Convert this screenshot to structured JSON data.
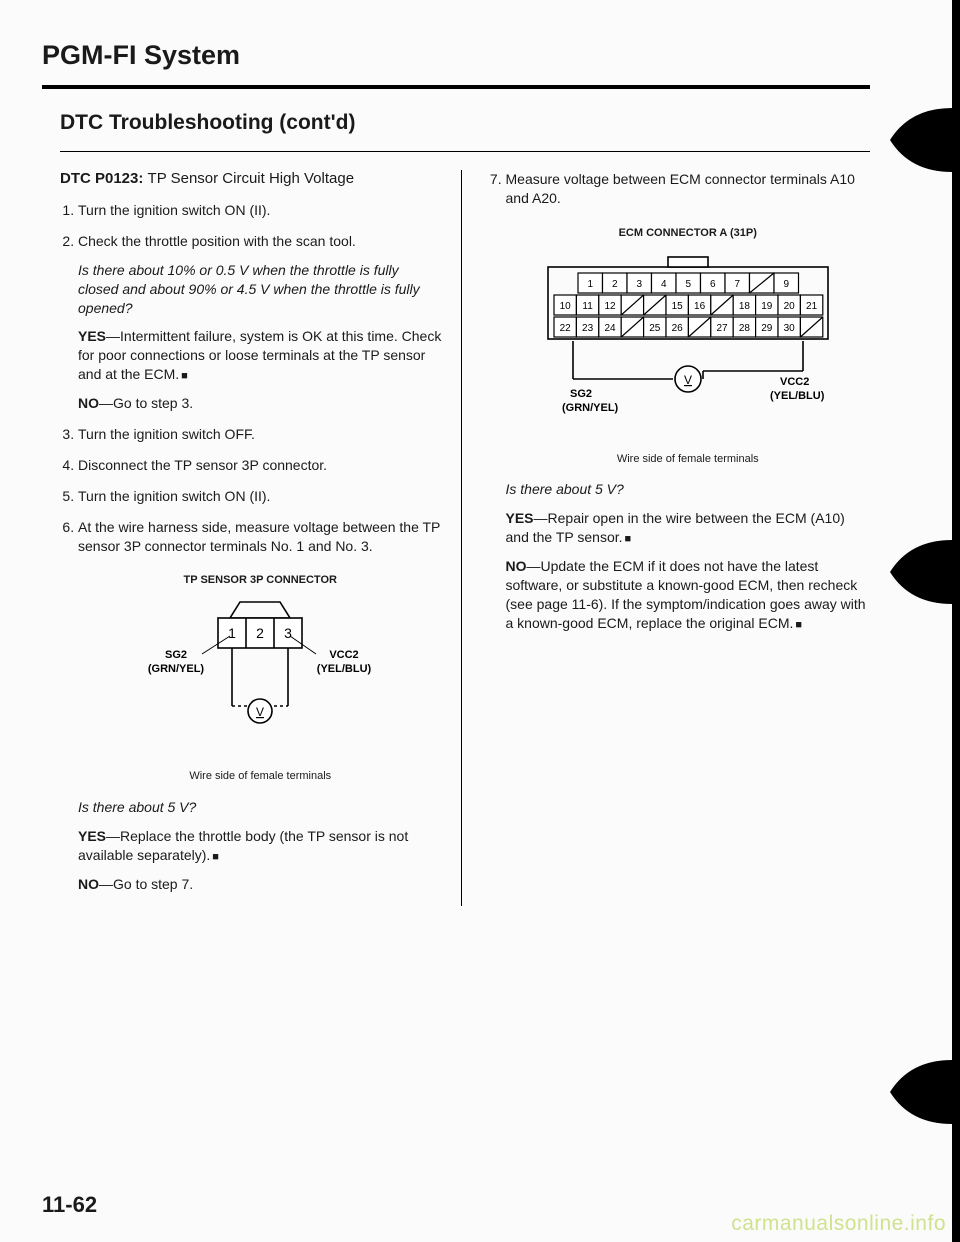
{
  "page_title": "PGM-FI System",
  "section_title": "DTC Troubleshooting (cont'd)",
  "dtc_code": "DTC P0123:",
  "dtc_desc": "TP Sensor Circuit High Voltage",
  "left_steps": {
    "s1": "Turn the ignition switch ON (II).",
    "s2": "Check the throttle position with the scan tool.",
    "s2_q": "Is there about 10% or 0.5 V when the throttle is fully closed and about 90% or 4.5 V when the throttle is fully opened?",
    "s2_yes": "—Intermittent failure, system is OK at this time. Check for poor connections or loose terminals at the TP sensor and at the ECM.",
    "s2_no": "—Go to step 3.",
    "s3": "Turn the ignition switch OFF.",
    "s4": "Disconnect the TP sensor 3P connector.",
    "s5": "Turn the ignition switch ON (II).",
    "s6": "At the wire harness side, measure voltage between the TP sensor 3P connector terminals No. 1 and No. 3.",
    "s6_q": "Is there about 5 V?",
    "s6_yes": "—Replace the throttle body (the TP sensor is not available separately).",
    "s6_no": "—Go to step 7."
  },
  "tp_diagram": {
    "title": "TP SENSOR 3P CONNECTOR",
    "cells": [
      "1",
      "2",
      "3"
    ],
    "left_label_1": "SG2",
    "left_label_2": "(GRN/YEL)",
    "right_label_1": "VCC2",
    "right_label_2": "(YEL/BLU)",
    "caption": "Wire side of female terminals"
  },
  "right_steps": {
    "s7": "Measure voltage between ECM connector terminals A10 and A20.",
    "q": "Is there about 5 V?",
    "yes": "—Repair open in the wire between the ECM (A10) and the TP sensor.",
    "no": "—Update the ECM if it does not have the latest software, or substitute a known-good ECM, then recheck (see page 11-6). If the symptom/indication goes away with a known-good ECM, replace the original ECM."
  },
  "ecm_diagram": {
    "title": "ECM CONNECTOR A (31P)",
    "row1": [
      "1",
      "2",
      "3",
      "4",
      "5",
      "6",
      "7",
      "",
      "9"
    ],
    "row2": [
      "10",
      "11",
      "12",
      "",
      "",
      "15",
      "16",
      "",
      "18",
      "19",
      "20",
      "21"
    ],
    "row3": [
      "22",
      "23",
      "24",
      "",
      "25",
      "26",
      "",
      "27",
      "28",
      "29",
      "30",
      ""
    ],
    "left_label_1": "SG2",
    "left_label_2": "(GRN/YEL)",
    "right_label_1": "VCC2",
    "right_label_2": "(YEL/BLU)",
    "caption": "Wire side of female terminals"
  },
  "labels": {
    "yes": "YES",
    "no": "NO"
  },
  "page_number": "11-62",
  "watermark": "carmanualsonline.info"
}
